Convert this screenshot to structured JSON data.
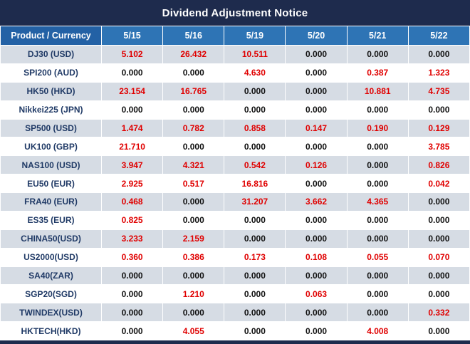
{
  "title": "Dividend Adjustment Notice",
  "table": {
    "corner_label": "Product / Currency",
    "date_headers": [
      "5/15",
      "5/16",
      "5/19",
      "5/20",
      "5/21",
      "5/22"
    ],
    "rows": [
      {
        "product": "DJ30 (USD)",
        "values": [
          "5.102",
          "26.432",
          "10.511",
          "0.000",
          "0.000",
          "0.000"
        ]
      },
      {
        "product": "SPI200 (AUD)",
        "values": [
          "0.000",
          "0.000",
          "4.630",
          "0.000",
          "0.387",
          "1.323"
        ]
      },
      {
        "product": "HK50 (HKD)",
        "values": [
          "23.154",
          "16.765",
          "0.000",
          "0.000",
          "10.881",
          "4.735"
        ]
      },
      {
        "product": "Nikkei225 (JPN)",
        "values": [
          "0.000",
          "0.000",
          "0.000",
          "0.000",
          "0.000",
          "0.000"
        ]
      },
      {
        "product": "SP500 (USD)",
        "values": [
          "1.474",
          "0.782",
          "0.858",
          "0.147",
          "0.190",
          "0.129"
        ]
      },
      {
        "product": "UK100 (GBP)",
        "values": [
          "21.710",
          "0.000",
          "0.000",
          "0.000",
          "0.000",
          "3.785"
        ]
      },
      {
        "product": "NAS100 (USD)",
        "values": [
          "3.947",
          "4.321",
          "0.542",
          "0.126",
          "0.000",
          "0.826"
        ]
      },
      {
        "product": "EU50 (EUR)",
        "values": [
          "2.925",
          "0.517",
          "16.816",
          "0.000",
          "0.000",
          "0.042"
        ]
      },
      {
        "product": "FRA40 (EUR)",
        "values": [
          "0.468",
          "0.000",
          "31.207",
          "3.662",
          "4.365",
          "0.000"
        ]
      },
      {
        "product": "ES35 (EUR)",
        "values": [
          "0.825",
          "0.000",
          "0.000",
          "0.000",
          "0.000",
          "0.000"
        ]
      },
      {
        "product": "CHINA50(USD)",
        "values": [
          "3.233",
          "2.159",
          "0.000",
          "0.000",
          "0.000",
          "0.000"
        ]
      },
      {
        "product": "US2000(USD)",
        "values": [
          "0.360",
          "0.386",
          "0.173",
          "0.108",
          "0.055",
          "0.070"
        ]
      },
      {
        "product": "SA40(ZAR)",
        "values": [
          "0.000",
          "0.000",
          "0.000",
          "0.000",
          "0.000",
          "0.000"
        ]
      },
      {
        "product": "SGP20(SGD)",
        "values": [
          "0.000",
          "1.210",
          "0.000",
          "0.063",
          "0.000",
          "0.000"
        ]
      },
      {
        "product": "TWINDEX(USD)",
        "values": [
          "0.000",
          "0.000",
          "0.000",
          "0.000",
          "0.000",
          "0.332"
        ]
      },
      {
        "product": "HKTECH(HKD)",
        "values": [
          "0.000",
          "4.055",
          "0.000",
          "0.000",
          "4.008",
          "0.000"
        ]
      }
    ]
  },
  "colors": {
    "title_bg": "#1e2b4d",
    "header_bg": "#2e74b5",
    "corner_header_bg": "#2361a5",
    "stripe_row_bg": "#d6dce4",
    "nonzero_value_color": "#e00000",
    "zero_value_color": "#111111",
    "product_text_color": "#203a66"
  }
}
